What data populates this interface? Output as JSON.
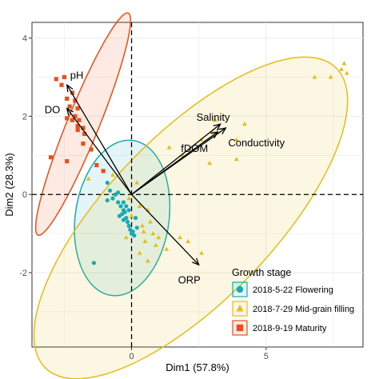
{
  "chart_data": {
    "type": "scatter",
    "title": "",
    "xlabel": "Dim1 (57.8%)",
    "ylabel": "Dim2 (28.3%)",
    "xlim": [
      -3.7,
      8.6
    ],
    "ylim": [
      -3.9,
      4.4
    ],
    "xticks": [
      0,
      5
    ],
    "yticks": [
      -2,
      0,
      2,
      4
    ],
    "grid": true,
    "legend_position": "bottom-right",
    "legend_title": "Growth stage",
    "series": [
      {
        "name": "2018-5-22 Flowering",
        "marker": "circle",
        "color": "#17a9b5",
        "points": [
          [
            -0.9,
            0.3
          ],
          [
            -0.8,
            0.1
          ],
          [
            -0.7,
            -0.1
          ],
          [
            -0.6,
            0.0
          ],
          [
            -0.5,
            -0.2
          ],
          [
            -0.4,
            -0.3
          ],
          [
            -0.3,
            -0.4
          ],
          [
            -0.35,
            -0.5
          ],
          [
            -0.2,
            -0.6
          ],
          [
            -0.15,
            -0.7
          ],
          [
            -0.1,
            -0.8
          ],
          [
            -0.05,
            -0.9
          ],
          [
            0.0,
            -1.0
          ],
          [
            0.05,
            -0.95
          ],
          [
            0.1,
            -1.05
          ],
          [
            -0.25,
            -0.45
          ],
          [
            -0.3,
            -0.65
          ],
          [
            -0.5,
            0.05
          ],
          [
            -0.45,
            -0.55
          ],
          [
            -0.2,
            -0.3
          ],
          [
            0.15,
            -0.6
          ],
          [
            0.2,
            -0.85
          ],
          [
            -0.1,
            -0.4
          ],
          [
            -1.4,
            -1.75
          ],
          [
            -0.9,
            -0.15
          ],
          [
            -0.3,
            -0.2
          ]
        ],
        "ellipse": {
          "cx": -0.35,
          "cy": -0.6,
          "rx": 2.05,
          "ry": 1.7,
          "angle_deg": 64
        }
      },
      {
        "name": "2018-7-29 Mid-grain filling",
        "marker": "triangle",
        "color": "#e6bc15",
        "points": [
          [
            7.4,
            3.0
          ],
          [
            7.8,
            3.2
          ],
          [
            7.9,
            3.35
          ],
          [
            8.0,
            3.1
          ],
          [
            6.8,
            3.0
          ],
          [
            3.9,
            0.9
          ],
          [
            3.9,
            1.4
          ],
          [
            4.2,
            1.8
          ],
          [
            3.1,
            1.9
          ],
          [
            3.0,
            1.6
          ],
          [
            2.6,
            1.4
          ],
          [
            1.4,
            1.2
          ],
          [
            1.9,
            1.0
          ],
          [
            2.9,
            0.8
          ],
          [
            -0.1,
            -0.1
          ],
          [
            0.3,
            -0.3
          ],
          [
            0.6,
            -0.4
          ],
          [
            0.7,
            -0.7
          ],
          [
            0.8,
            -1.0
          ],
          [
            1.0,
            -1.1
          ],
          [
            0.5,
            -1.2
          ],
          [
            0.9,
            -1.3
          ],
          [
            1.3,
            -1.4
          ],
          [
            1.8,
            -1.1
          ],
          [
            2.1,
            -1.2
          ],
          [
            0.4,
            -0.8
          ],
          [
            -0.2,
            -1.1
          ],
          [
            0.3,
            -1.5
          ],
          [
            0.6,
            -1.7
          ],
          [
            2.6,
            -1.5
          ],
          [
            -1.6,
            0.4
          ],
          [
            -0.7,
            0.5
          ],
          [
            0.2,
            0.3
          ],
          [
            0.0,
            -0.55
          ],
          [
            0.45,
            -0.95
          ]
        ],
        "ellipse": {
          "cx": 2.2,
          "cy": -0.6,
          "rx": 6.7,
          "ry": 2.45,
          "angle_deg": 32
        }
      },
      {
        "name": "2018-9-19 Maturity",
        "marker": "square",
        "color": "#e94f1b",
        "points": [
          [
            -2.8,
            2.95
          ],
          [
            -2.6,
            2.8
          ],
          [
            -2.5,
            3.0
          ],
          [
            -2.2,
            2.6
          ],
          [
            -2.1,
            2.4
          ],
          [
            -2.4,
            2.45
          ],
          [
            -2.0,
            2.2
          ],
          [
            -2.3,
            2.25
          ],
          [
            -2.1,
            2.0
          ],
          [
            -1.95,
            1.9
          ],
          [
            -2.2,
            1.9
          ],
          [
            -2.0,
            1.75
          ],
          [
            -1.8,
            1.7
          ],
          [
            -1.75,
            1.55
          ],
          [
            -1.5,
            1.15
          ],
          [
            -1.8,
            1.3
          ],
          [
            -2.4,
            1.95
          ],
          [
            -2.0,
            1.65
          ],
          [
            -2.4,
            0.85
          ],
          [
            -3.0,
            0.95
          ],
          [
            -1.3,
            0.75
          ],
          [
            -1.05,
            0.6
          ]
        ],
        "ellipse": {
          "cx": -1.8,
          "cy": 1.8,
          "rx": 3.3,
          "ry": 0.55,
          "angle_deg": 59
        }
      }
    ],
    "vectors": [
      {
        "label": "pH",
        "x": -2.4,
        "y": 2.8
      },
      {
        "label": "DO",
        "x": -2.4,
        "y": 2.2
      },
      {
        "label": "Salinity",
        "x": 3.3,
        "y": 1.8
      },
      {
        "label": "fDOM",
        "x": 3.2,
        "y": 1.6
      },
      {
        "label": "Conductivity",
        "x": 3.5,
        "y": 1.7
      },
      {
        "label": "ORP",
        "x": 2.5,
        "y": -1.8
      }
    ]
  }
}
